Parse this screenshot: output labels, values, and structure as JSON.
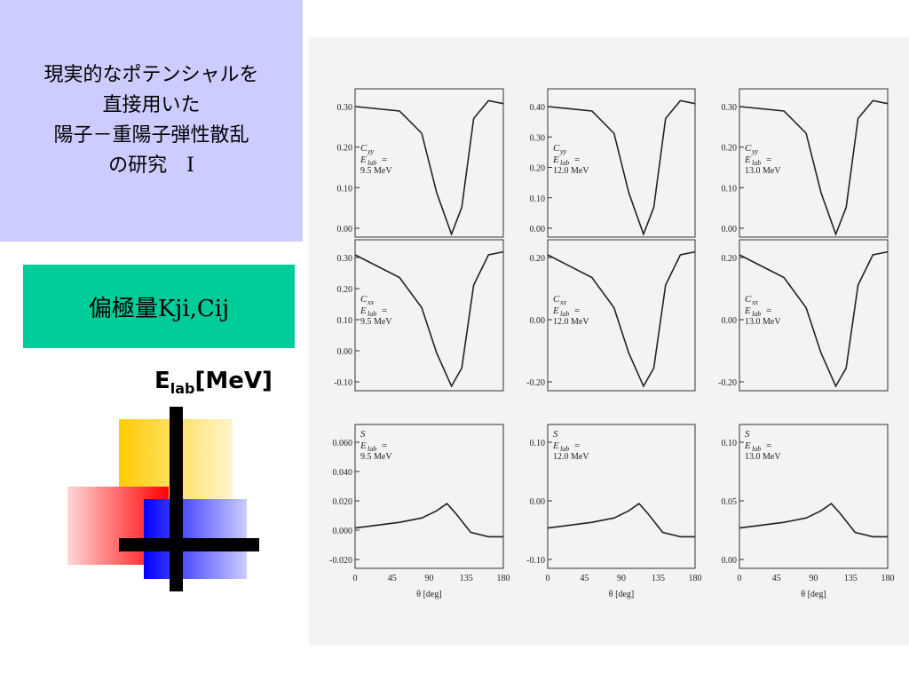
{
  "title": [
    "現実的なポテンシャルを",
    "直接用いた",
    "陽子－重陽子弾性散乱",
    "の研究　Ⅰ"
  ],
  "subtitle": "偏極量Kji,Cij",
  "energy_label": {
    "main": "E",
    "sub": "lab",
    "rest": "[MeV]"
  },
  "figure": {
    "energy_symbol": "E",
    "energy_sub": "lab",
    "equals": "=",
    "xticks": [
      "0",
      "45",
      "90",
      "135",
      "180"
    ],
    "xlabel": "θ [deg]",
    "panels": [
      {
        "symbol": "C",
        "symbol_sub": "yy",
        "energy": "9.5 MeV",
        "yticks": [
          "0.30",
          "0.20",
          "0.10",
          "0.00"
        ]
      },
      {
        "symbol": "C",
        "symbol_sub": "yy",
        "energy": "12.0 MeV",
        "yticks": [
          "0.40",
          "0.30",
          "0.20",
          "0.10",
          "0.00"
        ]
      },
      {
        "symbol": "C",
        "symbol_sub": "yy",
        "energy": "13.0 MeV",
        "yticks": [
          "0.30",
          "0.20",
          "0.10",
          "0.00"
        ]
      },
      {
        "symbol": "C",
        "symbol_sub": "xx",
        "energy": "9.5 MeV",
        "yticks": [
          "0.30",
          "0.20",
          "0.10",
          "0.00",
          "-0.10"
        ]
      },
      {
        "symbol": "C",
        "symbol_sub": "xx",
        "energy": "12.0 MeV",
        "yticks": [
          "0.20",
          "0.00",
          "-0.20"
        ]
      },
      {
        "symbol": "C",
        "symbol_sub": "xx",
        "energy": "13.0 MeV",
        "yticks": [
          "0.20",
          "0.00",
          "-0.20"
        ]
      },
      {
        "symbol": "S",
        "symbol_sub": "",
        "energy": "9.5 MeV",
        "yticks": [
          "0.060",
          "0.040",
          "0.020",
          "0.000",
          "-0.020"
        ]
      },
      {
        "symbol": "S",
        "symbol_sub": "",
        "energy": "12.0 MeV",
        "yticks": [
          "0.10",
          "0.00",
          "-0.10"
        ]
      },
      {
        "symbol": "S",
        "symbol_sub": "",
        "energy": "13.0 MeV",
        "yticks": [
          "0.10",
          "0.05",
          "0.00"
        ]
      }
    ]
  }
}
